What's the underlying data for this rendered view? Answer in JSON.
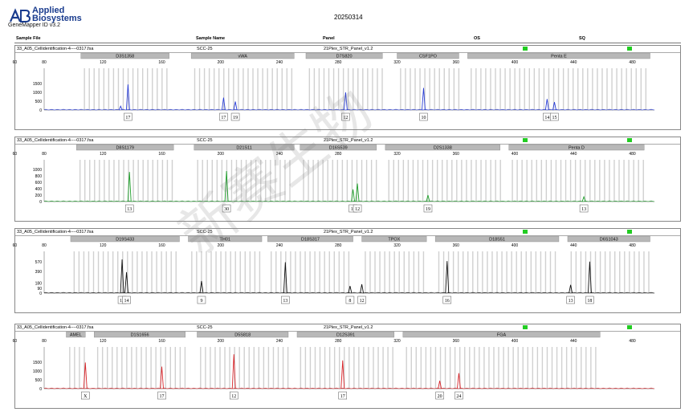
{
  "header": {
    "brand_line1": "Applied",
    "brand_line2": "Biosystems",
    "software": "GeneMapper ID v3.2",
    "run_date": "20250314",
    "col_sample_file": "Sample File",
    "col_sample_name": "Sample Name",
    "col_panel": "Panel",
    "col_os": "OS",
    "col_sq": "SQ"
  },
  "watermark": "新赛生物",
  "colors": {
    "blue": "#2b3fd6",
    "green": "#1e9e2a",
    "black": "#111111",
    "red": "#d8262b",
    "bin": "#d0d0d0",
    "marker": "#b8b8b8",
    "quality": "#22cc22"
  },
  "chart_data": [
    {
      "type": "line",
      "dye": "blue",
      "sample_file": "33_A05_Cellidentification-4----0317.fsa",
      "sample_name": "SCC-25",
      "panel": "21Plex_STR_Panel_v1.2",
      "x_ticks": [
        60,
        80,
        120,
        160,
        200,
        240,
        280,
        320,
        360,
        400,
        440,
        480
      ],
      "xlim": [
        80,
        495
      ],
      "y_ticks": [
        0,
        500,
        1000,
        1500
      ],
      "ylim": [
        0,
        2000
      ],
      "markers": [
        {
          "name": "D3S1358",
          "range": [
            105,
            165
          ]
        },
        {
          "name": "vWA",
          "range": [
            180,
            250
          ]
        },
        {
          "name": "D7S820",
          "range": [
            258,
            310
          ]
        },
        {
          "name": "CSF1PO",
          "range": [
            320,
            362
          ]
        },
        {
          "name": "Penta E",
          "range": [
            368,
            492
          ]
        }
      ],
      "peaks": [
        {
          "x": 137,
          "height": 1450,
          "allele": "17"
        },
        {
          "x": 132,
          "height": 220,
          "allele": ""
        },
        {
          "x": 202,
          "height": 700,
          "allele": "17"
        },
        {
          "x": 210,
          "height": 480,
          "allele": "19"
        },
        {
          "x": 285,
          "height": 1000,
          "allele": "12"
        },
        {
          "x": 338,
          "height": 1250,
          "allele": "10"
        },
        {
          "x": 422,
          "height": 620,
          "allele": "14"
        },
        {
          "x": 427,
          "height": 450,
          "allele": "15"
        }
      ]
    },
    {
      "type": "line",
      "dye": "green",
      "sample_file": "33_A05_Cellidentification-4----0317.fsa",
      "sample_name": "SCC-25",
      "panel": "21Plex_STR_Panel_v1.2",
      "x_ticks": [
        60,
        80,
        120,
        160,
        200,
        240,
        280,
        320,
        360,
        400,
        440,
        480
      ],
      "xlim": [
        80,
        495
      ],
      "y_ticks": [
        0,
        200,
        400,
        600,
        800,
        1000
      ],
      "ylim": [
        0,
        1100
      ],
      "markers": [
        {
          "name": "D8S1179",
          "range": [
            102,
            168
          ]
        },
        {
          "name": "D21S11",
          "range": [
            182,
            250
          ]
        },
        {
          "name": "D16S539",
          "range": [
            254,
            306
          ]
        },
        {
          "name": "D2S1338",
          "range": [
            312,
            390
          ]
        },
        {
          "name": "Penta D",
          "range": [
            396,
            488
          ]
        }
      ],
      "peaks": [
        {
          "x": 138,
          "height": 920,
          "allele": "13"
        },
        {
          "x": 204,
          "height": 950,
          "allele": "30"
        },
        {
          "x": 290,
          "height": 380,
          "allele": "11"
        },
        {
          "x": 293,
          "height": 560,
          "allele": "12"
        },
        {
          "x": 341,
          "height": 200,
          "allele": "19"
        },
        {
          "x": 447,
          "height": 150,
          "allele": "13"
        }
      ]
    },
    {
      "type": "line",
      "dye": "black",
      "sample_file": "33_A05_Cellidentification-4----0317.fsa",
      "sample_name": "SCC-25",
      "panel": "21Plex_STR_Panel_v1.2",
      "x_ticks": [
        60,
        80,
        120,
        160,
        200,
        240,
        280,
        320,
        360,
        400,
        440,
        480
      ],
      "xlim": [
        80,
        495
      ],
      "y_ticks": [
        0,
        90,
        180,
        390,
        570
      ],
      "ylim": [
        0,
        640
      ],
      "markers": [
        {
          "name": "D19S433",
          "range": [
            98,
            172
          ]
        },
        {
          "name": "TH01",
          "range": [
            178,
            228
          ]
        },
        {
          "name": "D18S317",
          "range": [
            232,
            290
          ]
        },
        {
          "name": "TPOX",
          "range": [
            296,
            340
          ]
        },
        {
          "name": "D18S51",
          "range": [
            346,
            430
          ]
        },
        {
          "name": "D6S1043",
          "range": [
            436,
            492
          ]
        }
      ],
      "peaks": [
        {
          "x": 133,
          "height": 610,
          "allele": "13"
        },
        {
          "x": 136,
          "height": 380,
          "allele": "14"
        },
        {
          "x": 187,
          "height": 220,
          "allele": "9"
        },
        {
          "x": 244,
          "height": 560,
          "allele": "13"
        },
        {
          "x": 288,
          "height": 130,
          "allele": "8"
        },
        {
          "x": 296,
          "height": 160,
          "allele": "12"
        },
        {
          "x": 354,
          "height": 580,
          "allele": "16"
        },
        {
          "x": 438,
          "height": 150,
          "allele": "13"
        },
        {
          "x": 451,
          "height": 570,
          "allele": "18"
        }
      ]
    },
    {
      "type": "line",
      "dye": "red",
      "sample_file": "33_A05_Cellidentification-4----0317.fsa",
      "sample_name": "SCC-25",
      "panel": "21Plex_STR_Panel_v1.2",
      "x_ticks": [
        60,
        80,
        120,
        160,
        200,
        240,
        280,
        320,
        360,
        400,
        440,
        480
      ],
      "xlim": [
        80,
        495
      ],
      "y_ticks": [
        0,
        500,
        1000,
        1500
      ],
      "ylim": [
        0,
        2000
      ],
      "markers": [
        {
          "name": "AMEL",
          "range": [
            95,
            108
          ]
        },
        {
          "name": "D1S1656",
          "range": [
            114,
            176
          ]
        },
        {
          "name": "D5S818",
          "range": [
            184,
            246
          ]
        },
        {
          "name": "D12S391",
          "range": [
            252,
            318
          ]
        },
        {
          "name": "FGA",
          "range": [
            324,
            458
          ]
        }
      ],
      "peaks": [
        {
          "x": 108,
          "height": 1480,
          "allele": "X"
        },
        {
          "x": 160,
          "height": 1250,
          "allele": "17"
        },
        {
          "x": 209,
          "height": 1950,
          "allele": "12"
        },
        {
          "x": 283,
          "height": 1600,
          "allele": "17"
        },
        {
          "x": 349,
          "height": 450,
          "allele": "20"
        },
        {
          "x": 362,
          "height": 880,
          "allele": "24"
        }
      ]
    }
  ]
}
